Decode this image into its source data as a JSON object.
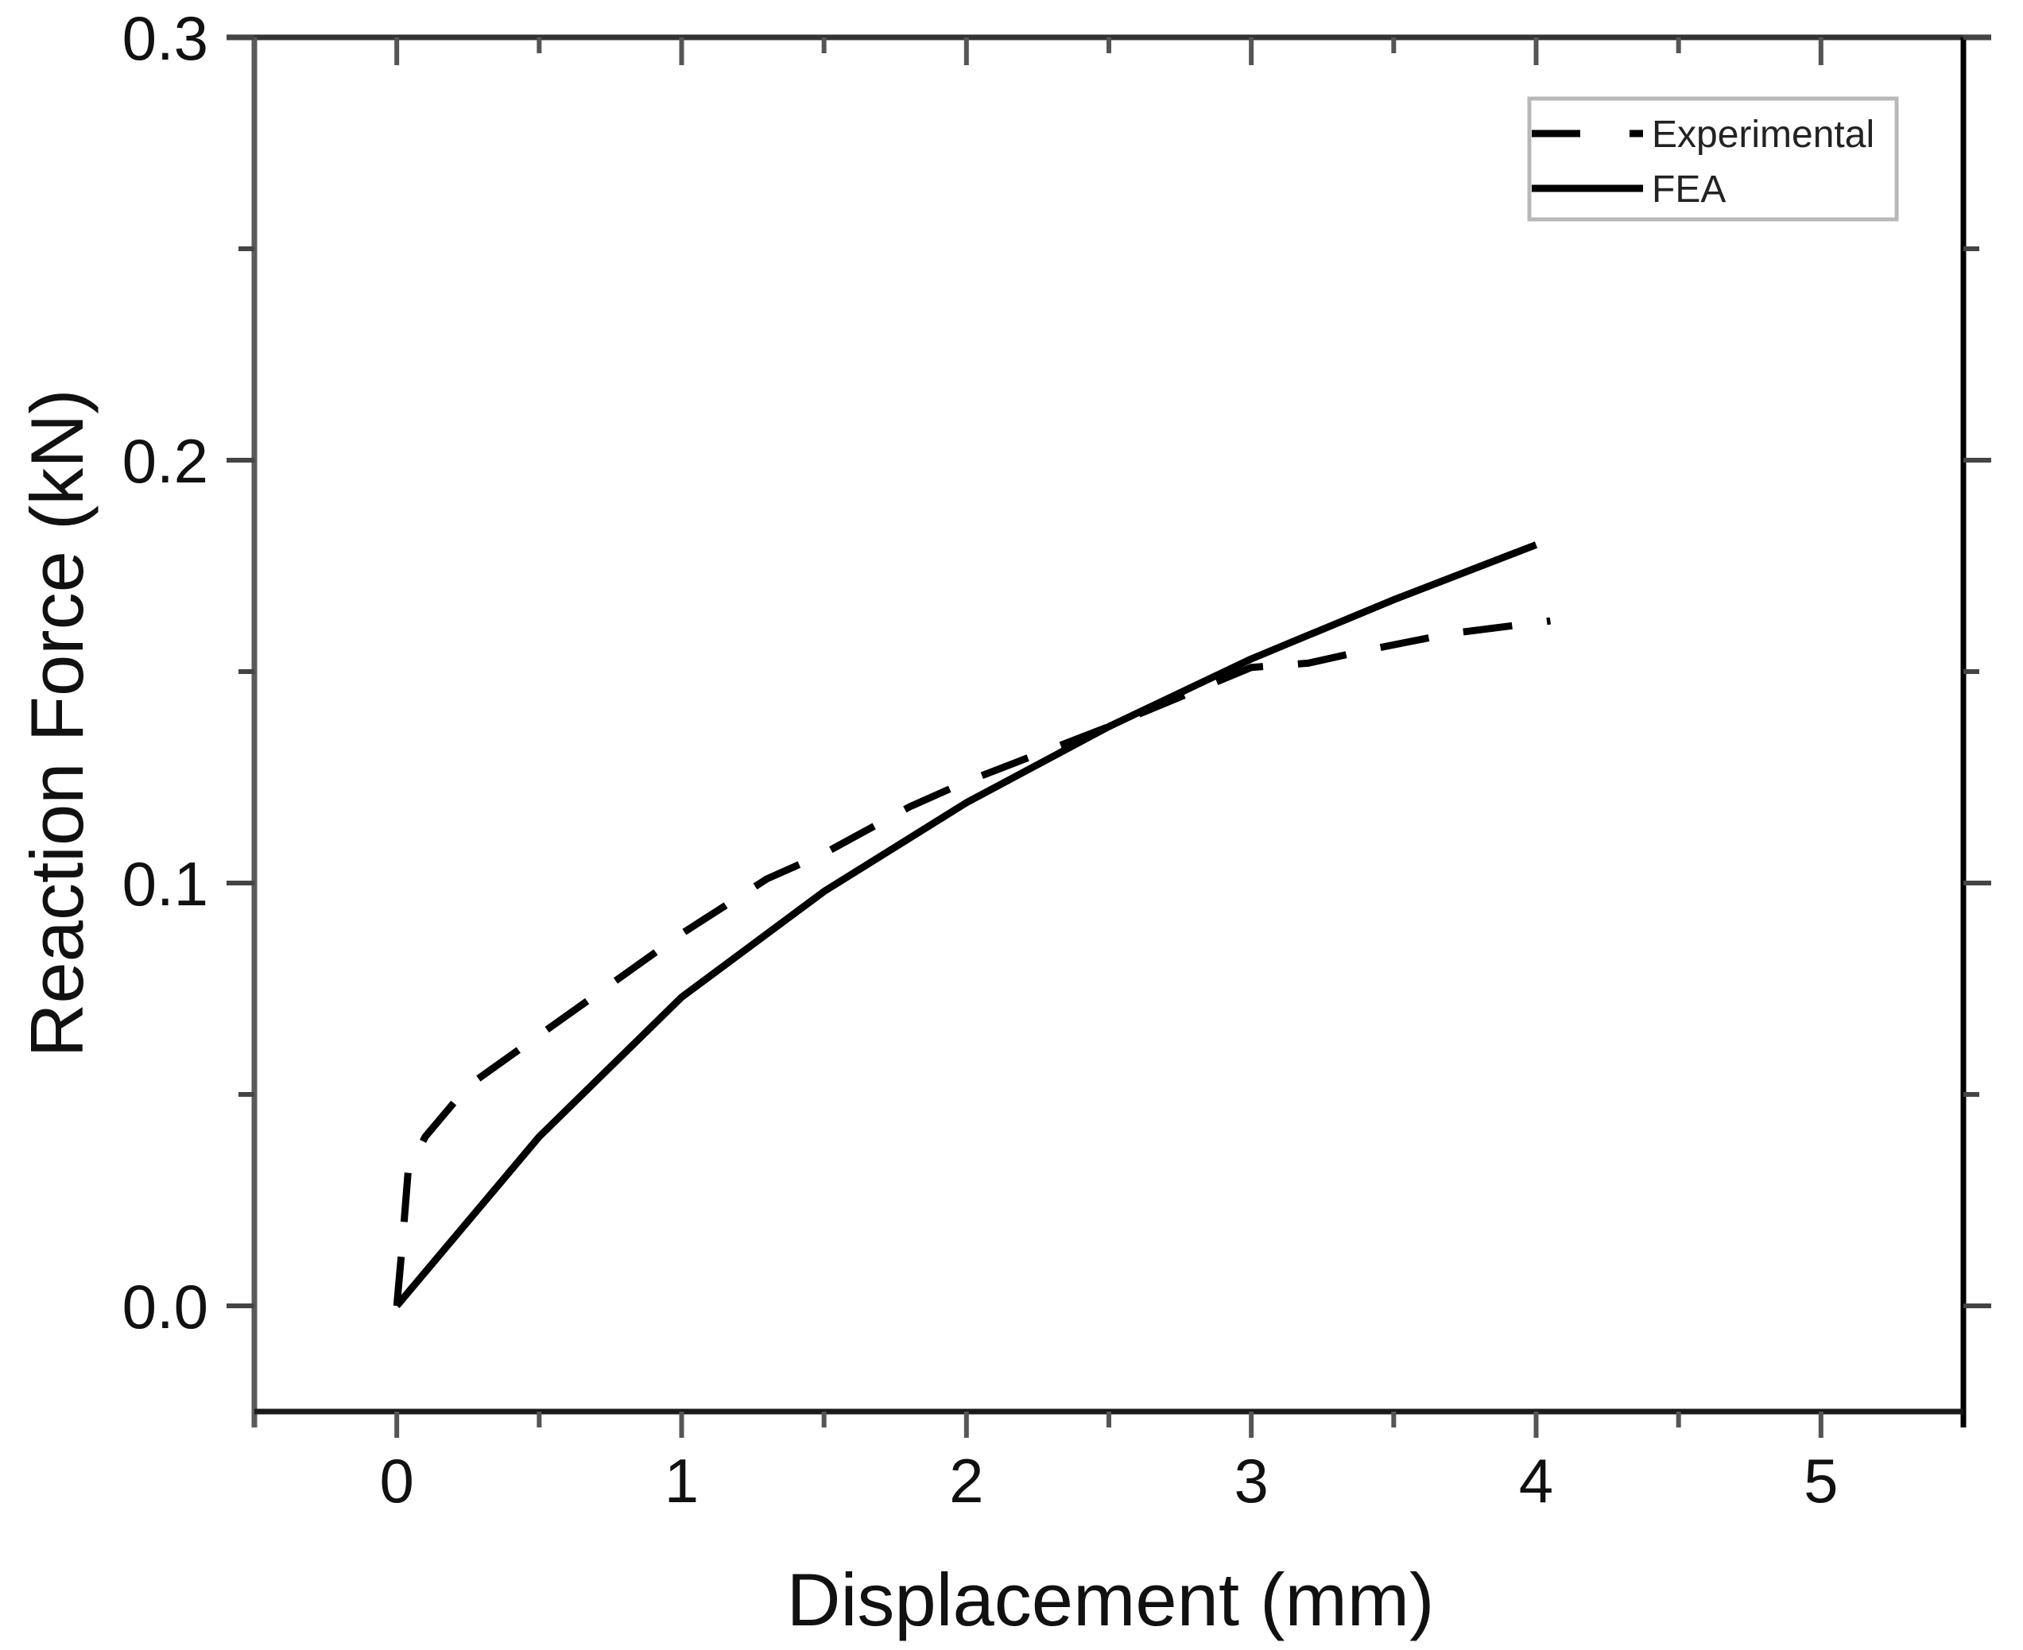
{
  "chart_data": {
    "type": "line",
    "title": "",
    "xlabel": "Displacement (mm)",
    "ylabel": "Reaction Force (kN)",
    "xlim": [
      -0.5,
      5.5
    ],
    "ylim": [
      -0.025,
      0.3
    ],
    "x_ticks": [
      0,
      1,
      2,
      3,
      4,
      5
    ],
    "x_tick_labels": [
      "0",
      "1",
      "2",
      "3",
      "4",
      "5"
    ],
    "x_minor_ticks": [
      0.5,
      1.5,
      2.5,
      3.5,
      4.5
    ],
    "y_ticks": [
      0.0,
      0.1,
      0.2,
      0.3
    ],
    "y_tick_labels": [
      "0.0",
      "0.1",
      "0.2",
      "0.3"
    ],
    "y_minor_ticks": [
      0.05,
      0.15,
      0.25
    ],
    "grid": false,
    "legend_position": "upper right",
    "series": [
      {
        "name": "Experimental",
        "style": "dashed",
        "color": "#000000",
        "x": [
          0,
          0.02,
          0.04,
          0.1,
          0.25,
          0.5,
          0.75,
          1.0,
          1.3,
          1.5,
          1.8,
          2.0,
          2.5,
          3.0,
          3.2,
          3.4,
          3.7,
          4.05
        ],
        "y": [
          0,
          0.015,
          0.032,
          0.04,
          0.052,
          0.064,
          0.076,
          0.088,
          0.101,
          0.107,
          0.118,
          0.124,
          0.137,
          0.151,
          0.152,
          0.155,
          0.159,
          0.162
        ]
      },
      {
        "name": "FEA",
        "style": "solid",
        "color": "#000000",
        "x": [
          0,
          0.5,
          1.0,
          1.5,
          2.0,
          2.5,
          3.0,
          3.5,
          4.0
        ],
        "y": [
          0,
          0.04,
          0.073,
          0.098,
          0.119,
          0.137,
          0.153,
          0.167,
          0.18
        ]
      }
    ]
  },
  "legend": {
    "items": [
      {
        "label": "Experimental",
        "style": "dashed"
      },
      {
        "label": "FEA",
        "style": "solid"
      }
    ]
  }
}
